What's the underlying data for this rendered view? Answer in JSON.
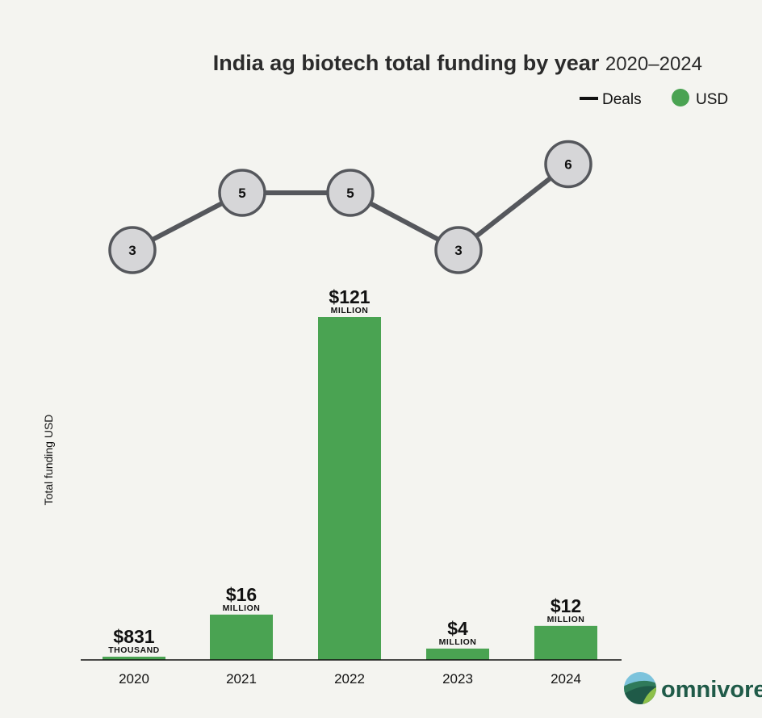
{
  "chart_data": {
    "type": "bar",
    "title": "India ag biotech total funding by year",
    "subtitle": "2020–2024",
    "ylabel": "Total funding USD",
    "xlabel": "",
    "categories": [
      "2020",
      "2021",
      "2022",
      "2023",
      "2024"
    ],
    "series": [
      {
        "name": "USD",
        "unit": "million USD",
        "values": [
          0.831,
          16,
          121,
          4,
          12
        ],
        "color": "#4aa352",
        "labels": [
          {
            "value": "$831",
            "unit": "THOUSAND"
          },
          {
            "value": "$16",
            "unit": "MILLION"
          },
          {
            "value": "$121",
            "unit": "MILLION"
          },
          {
            "value": "$4",
            "unit": "MILLION"
          },
          {
            "value": "$12",
            "unit": "MILLION"
          }
        ]
      },
      {
        "name": "Deals",
        "type": "line",
        "values": [
          3,
          5,
          5,
          3,
          6
        ],
        "color": "#55575c"
      }
    ],
    "ylim": [
      0,
      121
    ],
    "grid": false,
    "legend": "top-right"
  },
  "legend": {
    "deals": "Deals",
    "usd": "USD"
  },
  "brand": {
    "name": "omnivore"
  }
}
